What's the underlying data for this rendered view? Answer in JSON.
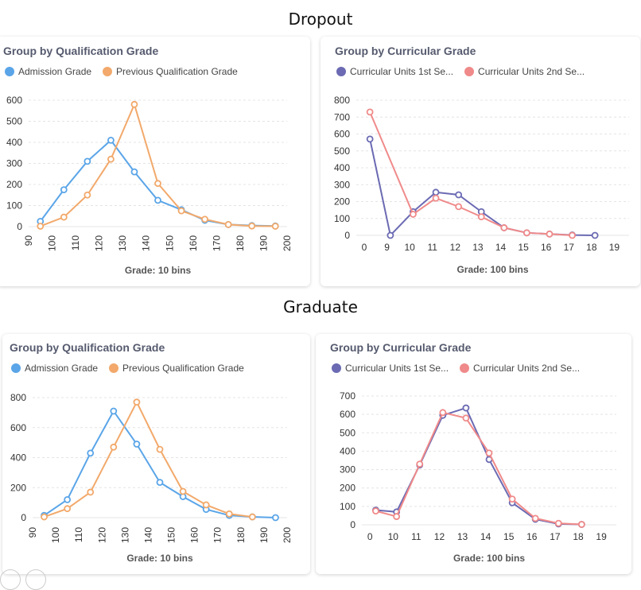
{
  "sections": [
    {
      "title": "Dropout"
    },
    {
      "title": "Graduate"
    }
  ],
  "colors": {
    "admission": "#5aa5e8",
    "previous": "#f2a96b",
    "cu1": "#6b6ab3",
    "cu2": "#f08a8a",
    "grid": "#e4e4e4"
  },
  "chart_data": [
    {
      "id": "dropout-qualification",
      "type": "line",
      "title": "Group by Qualification Grade",
      "xlabel": "Grade: 10 bins",
      "x_ticks": [
        "90",
        "100",
        "110",
        "120",
        "130",
        "140",
        "150",
        "160",
        "170",
        "180",
        "190",
        "200"
      ],
      "y_ticks": [
        0,
        100,
        200,
        300,
        400,
        500,
        600
      ],
      "ylim": [
        0,
        600
      ],
      "series": [
        {
          "name": "Admission Grade",
          "color_key": "admission",
          "x": [
            95,
            105,
            115,
            125,
            135,
            145,
            155,
            165,
            175,
            185,
            195
          ],
          "values": [
            25,
            175,
            310,
            410,
            260,
            125,
            80,
            30,
            10,
            5,
            3
          ]
        },
        {
          "name": "Previous Qualification Grade",
          "color_key": "previous",
          "x": [
            95,
            105,
            115,
            125,
            135,
            145,
            155,
            165,
            175,
            185,
            195
          ],
          "values": [
            2,
            45,
            150,
            320,
            580,
            205,
            75,
            35,
            10,
            3,
            2
          ]
        }
      ]
    },
    {
      "id": "dropout-curricular",
      "type": "line",
      "title": "Group by Curricular Grade",
      "xlabel": "Grade: 100 bins",
      "x_ticks": [
        "0",
        "9",
        "10",
        "11",
        "12",
        "13",
        "14",
        "15",
        "16",
        "17",
        "18",
        "19"
      ],
      "y_ticks": [
        0,
        100,
        200,
        300,
        400,
        500,
        600,
        700,
        800
      ],
      "ylim": [
        0,
        800
      ],
      "series": [
        {
          "name": "Curricular Units 1st Se...",
          "color_key": "cu1",
          "x": [
            0.6,
            1.5,
            2.5,
            3.5,
            4.5,
            5.5,
            6.5,
            7.5,
            8.5,
            9.5,
            10.5
          ],
          "values": [
            570,
            0,
            140,
            255,
            240,
            140,
            45,
            15,
            8,
            2,
            0
          ]
        },
        {
          "name": "Curricular Units 2nd Se...",
          "color_key": "cu2",
          "x": [
            0.6,
            2.5,
            3.5,
            4.5,
            5.5,
            6.5,
            7.5,
            8.5,
            9.5
          ],
          "values": [
            730,
            125,
            220,
            170,
            110,
            45,
            15,
            8,
            0
          ]
        }
      ]
    },
    {
      "id": "graduate-qualification",
      "type": "line",
      "title": "Group by Qualification Grade",
      "xlabel": "Grade: 10 bins",
      "x_ticks": [
        "90",
        "100",
        "110",
        "120",
        "130",
        "140",
        "150",
        "160",
        "170",
        "180",
        "190",
        "200"
      ],
      "y_ticks": [
        0,
        200,
        400,
        600,
        800
      ],
      "ylim": [
        0,
        800
      ],
      "series": [
        {
          "name": "Admission Grade",
          "color_key": "admission",
          "x": [
            95,
            105,
            115,
            125,
            135,
            145,
            155,
            165,
            175,
            185,
            195
          ],
          "values": [
            15,
            120,
            430,
            710,
            490,
            235,
            140,
            55,
            15,
            5,
            0
          ]
        },
        {
          "name": "Previous Qualification Grade",
          "color_key": "previous",
          "x": [
            95,
            105,
            115,
            125,
            135,
            145,
            155,
            165,
            175,
            185
          ],
          "values": [
            5,
            60,
            170,
            470,
            770,
            455,
            175,
            85,
            25,
            5
          ]
        }
      ]
    },
    {
      "id": "graduate-curricular",
      "type": "line",
      "title": "Group by Curricular Grade",
      "xlabel": "Grade: 100 bins",
      "x_ticks": [
        "0",
        "10",
        "11",
        "12",
        "13",
        "14",
        "15",
        "16",
        "17",
        "18",
        "19"
      ],
      "y_ticks": [
        0,
        100,
        200,
        300,
        400,
        500,
        600,
        700
      ],
      "ylim": [
        0,
        700
      ],
      "series": [
        {
          "name": "Curricular Units 1st Se...",
          "color_key": "cu1",
          "x": [
            0.6,
            1.5,
            2.5,
            3.5,
            4.5,
            5.5,
            6.5,
            7.5,
            8.5,
            9.5
          ],
          "values": [
            80,
            70,
            325,
            595,
            635,
            355,
            120,
            30,
            5,
            2
          ]
        },
        {
          "name": "Curricular Units 2nd Se...",
          "color_key": "cu2",
          "x": [
            0.6,
            1.5,
            2.5,
            3.5,
            4.5,
            5.5,
            6.5,
            7.5,
            8.5,
            9.5
          ],
          "values": [
            75,
            45,
            330,
            610,
            580,
            390,
            140,
            35,
            8,
            2
          ]
        }
      ]
    }
  ]
}
